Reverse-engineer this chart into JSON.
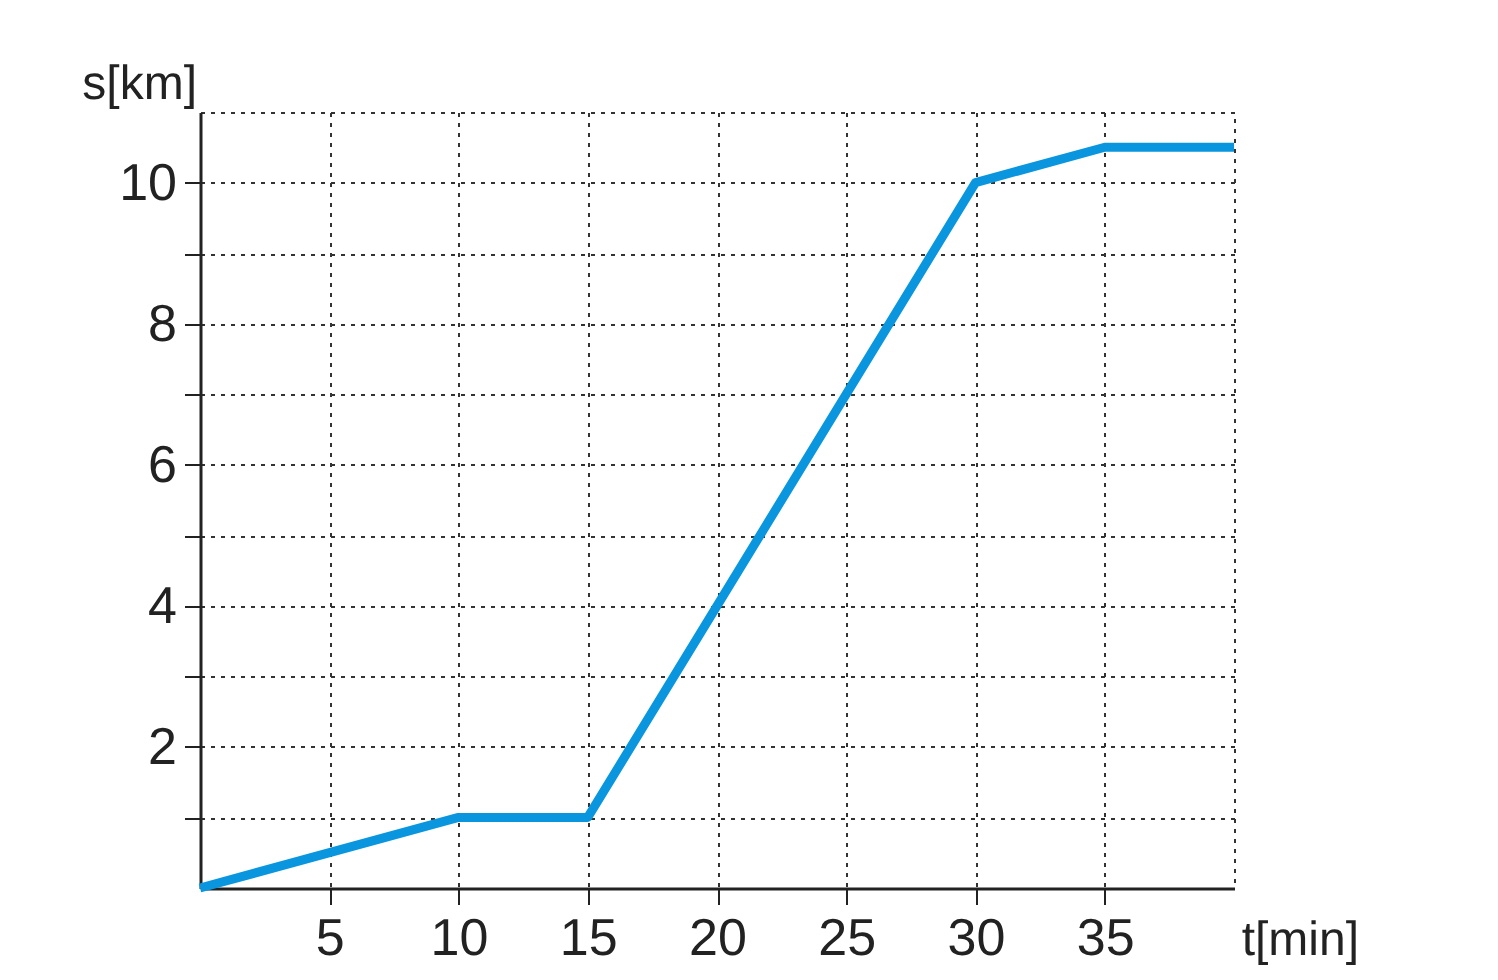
{
  "chart_data": {
    "type": "line",
    "xlabel": "t[min]",
    "ylabel": "s[km]",
    "x": [
      0,
      10,
      15,
      20,
      25,
      30,
      35,
      40
    ],
    "series": [
      {
        "color": "#0a96de",
        "values": [
          0,
          1,
          1,
          4,
          7,
          10,
          10.5,
          10.5
        ]
      }
    ],
    "xlim": [
      0,
      40
    ],
    "ylim": [
      0,
      11
    ],
    "xticks": [
      5,
      10,
      15,
      20,
      25,
      30,
      35
    ],
    "yticks": [
      {
        "value": 1,
        "label": null
      },
      2,
      {
        "value": 3,
        "label": null
      },
      4,
      {
        "value": 5,
        "label": null
      },
      6,
      {
        "value": 7,
        "label": null
      },
      8,
      {
        "value": 9,
        "label": null
      },
      10
    ],
    "grid": true,
    "line_style": "solid",
    "marker": "none"
  }
}
